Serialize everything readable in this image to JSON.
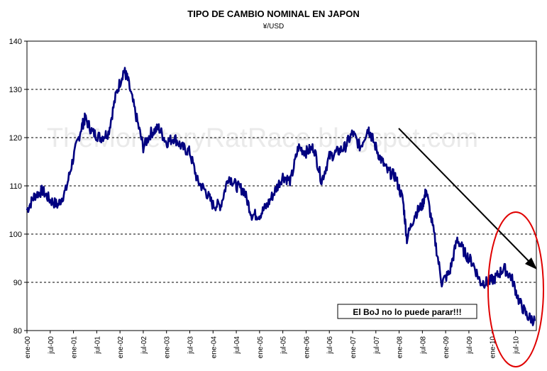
{
  "chart_data": {
    "type": "line",
    "title": "TIPO DE CAMBIO NOMINAL EN JAPON",
    "subtitle": "¥/USD",
    "xlabel": "",
    "ylabel": "",
    "ylim": [
      80,
      140
    ],
    "yticks": [
      80,
      90,
      100,
      110,
      120,
      130,
      140
    ],
    "grid": true,
    "legend": "none",
    "watermark": "TheMonetaryRatRace.blogspot.com",
    "line_color": "#000080",
    "x_tick_labels": [
      "ene-00",
      "jul-00",
      "ene-01",
      "jul-01",
      "ene-02",
      "jul-02",
      "ene-03",
      "jul-03",
      "ene-04",
      "jul-04",
      "ene-05",
      "jul-05",
      "ene-06",
      "jul-06",
      "ene-07",
      "jul-07",
      "ene-08",
      "jul-08",
      "ene-09",
      "jul-09",
      "ene-10",
      "jul-10"
    ],
    "series": [
      {
        "x": [
          "2000-01",
          "2000-03",
          "2000-05",
          "2000-07",
          "2000-09",
          "2000-11",
          "2001-01",
          "2001-03",
          "2001-04",
          "2001-06",
          "2001-08",
          "2001-10",
          "2001-12",
          "2002-02",
          "2002-03",
          "2002-05",
          "2002-07",
          "2002-09",
          "2002-11",
          "2003-01",
          "2003-03",
          "2003-05",
          "2003-07",
          "2003-09",
          "2003-11",
          "2004-01",
          "2004-03",
          "2004-05",
          "2004-07",
          "2004-09",
          "2004-11",
          "2005-01",
          "2005-03",
          "2005-05",
          "2005-07",
          "2005-09",
          "2005-11",
          "2006-01",
          "2006-03",
          "2006-05",
          "2006-07",
          "2006-09",
          "2006-11",
          "2007-01",
          "2007-03",
          "2007-05",
          "2007-06",
          "2007-08",
          "2007-10",
          "2007-12",
          "2008-02",
          "2008-03",
          "2008-05",
          "2008-07",
          "2008-08",
          "2008-10",
          "2008-12",
          "2009-02",
          "2009-04",
          "2009-06",
          "2009-08",
          "2009-10",
          "2009-12",
          "2010-02",
          "2010-04",
          "2010-06",
          "2010-08",
          "2010-10",
          "2010-12"
        ],
        "values": [
          105,
          108,
          109,
          107,
          106,
          109,
          116,
          122,
          124,
          121,
          120,
          121,
          129,
          134,
          132,
          125,
          118,
          121,
          122,
          119,
          120,
          118,
          117,
          111,
          109,
          106,
          106,
          112,
          110,
          109,
          104,
          104,
          106,
          109,
          112,
          111,
          118,
          117,
          118,
          111,
          116,
          117,
          118,
          121,
          118,
          122,
          120,
          116,
          113,
          112,
          107,
          99,
          104,
          106,
          109,
          100,
          90,
          92,
          99,
          96,
          94,
          90,
          90,
          91,
          93,
          91,
          86,
          83,
          82
        ]
      }
    ]
  },
  "annotation": {
    "text": "El BoJ no lo puede parar!!!"
  }
}
